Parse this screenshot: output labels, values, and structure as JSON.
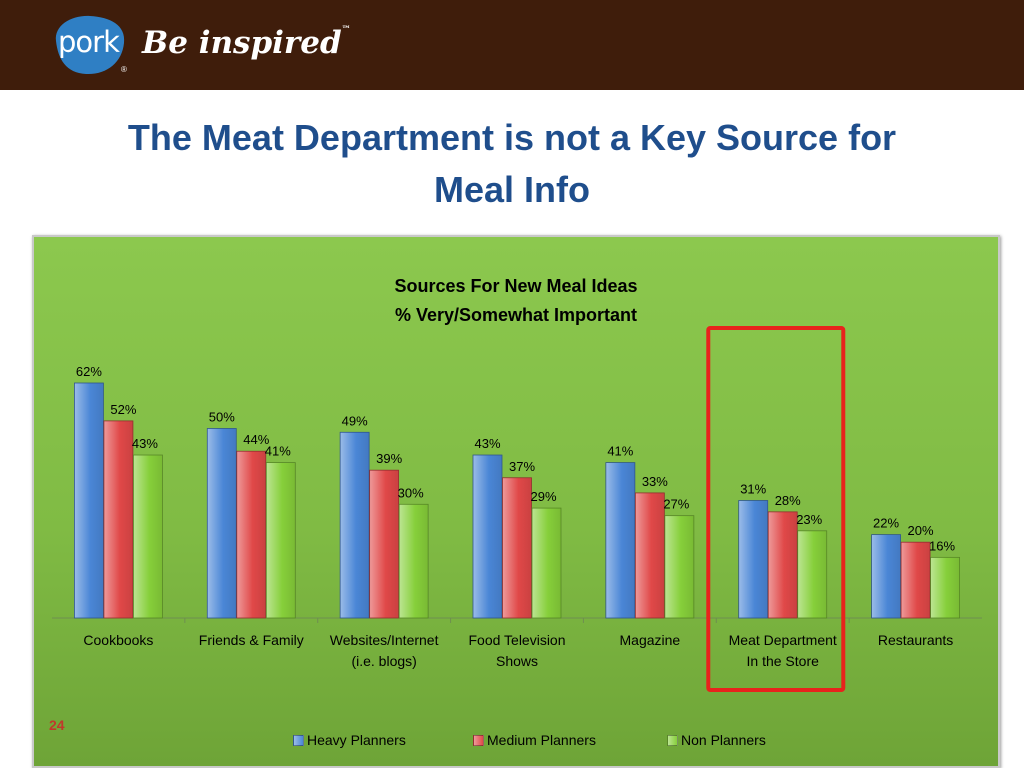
{
  "header": {
    "logo_word": "pork",
    "logo_mark": "®",
    "tagline": "Be inspired",
    "tagline_mark": "™"
  },
  "slide": {
    "title_line1": "The Meat Department is not a Key Source for",
    "title_line2": "Meal Info",
    "page_number": "24"
  },
  "colors": {
    "header_bg": "#3f1d0b",
    "title": "#1f4e8c",
    "panel_bg": "#84c048",
    "highlight_box": "#e8231c",
    "page_number": "#c0392b"
  },
  "chart_data": {
    "type": "bar",
    "title": "Sources For New Meal Ideas",
    "subtitle": "% Very/Somewhat Important",
    "categories": [
      [
        "Cookbooks"
      ],
      [
        "Friends & Family"
      ],
      [
        "Websites/Internet",
        "(i.e. blogs)"
      ],
      [
        "Food Television",
        "Shows"
      ],
      [
        "Magazine"
      ],
      [
        "Meat Department",
        "In the Store"
      ],
      [
        "Restaurants"
      ]
    ],
    "series": [
      {
        "name": "Heavy Planners",
        "color": "#4a86d6",
        "values": [
          62,
          50,
          49,
          43,
          41,
          31,
          22
        ]
      },
      {
        "name": "Medium Planners",
        "color": "#e04848",
        "values": [
          52,
          44,
          39,
          37,
          33,
          28,
          20
        ]
      },
      {
        "name": "Non Planners",
        "color": "#86cf3a",
        "values": [
          43,
          41,
          30,
          29,
          27,
          23,
          16
        ]
      }
    ],
    "value_suffix": "%",
    "ylim": [
      0,
      62
    ],
    "highlighted_category": "Meat Department In the Store",
    "legend_position": "bottom",
    "grid": false
  }
}
